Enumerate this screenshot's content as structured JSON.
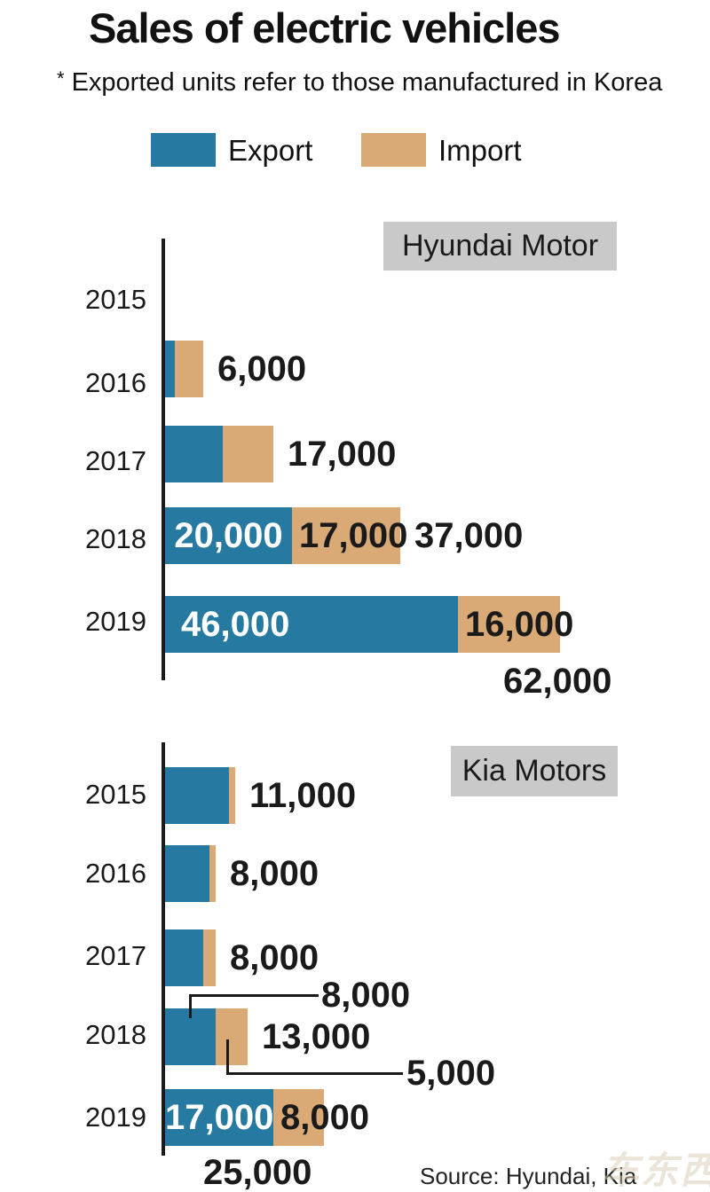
{
  "title": "Sales of electric vehicles",
  "note": {
    "marker": "*",
    "text": "Exported units refer to those manufactured in Korea"
  },
  "legend": [
    {
      "label": "Export",
      "color": "#2679a1"
    },
    {
      "label": "Import",
      "color": "#d9a976"
    }
  ],
  "colors": {
    "export": "#2679a1",
    "import": "#d9a976",
    "header_bg": "#c9c9c9",
    "axis": "#1a1a1a"
  },
  "source": "Source: Hyundai, Kia",
  "watermark": "车东西",
  "chart_data": [
    {
      "type": "bar",
      "orientation": "horizontal",
      "stacked": true,
      "title": "Hyundai Motor",
      "unit": "vehicles",
      "categories": [
        "2015",
        "2016",
        "2017",
        "2018",
        "2019"
      ],
      "series": [
        {
          "name": "Export",
          "values": [
            0,
            1500,
            9000,
            20000,
            46000
          ]
        },
        {
          "name": "Import",
          "values": [
            0,
            4500,
            8000,
            17000,
            16000
          ]
        }
      ],
      "totals": [
        0,
        6000,
        17000,
        37000,
        62000
      ],
      "xlim": [
        0,
        65000
      ],
      "grid": false,
      "legend_position": "top",
      "value_labels": [
        {},
        {
          "total": "6,000",
          "total_placement": "right"
        },
        {
          "total": "17,000",
          "total_placement": "right"
        },
        {
          "export": "20,000",
          "export_placement": "inside-center",
          "import": "17,000",
          "import_placement": "inside",
          "total": "37,000",
          "total_placement": "right"
        },
        {
          "export": "46,000",
          "export_placement": "inside-left",
          "import": "16,000",
          "import_placement": "inside",
          "total": "62,000",
          "total_placement": "below-right"
        }
      ]
    },
    {
      "type": "bar",
      "orientation": "horizontal",
      "stacked": true,
      "title": "Kia Motors",
      "unit": "vehicles",
      "categories": [
        "2015",
        "2016",
        "2017",
        "2018",
        "2019"
      ],
      "series": [
        {
          "name": "Export",
          "values": [
            10000,
            7000,
            6000,
            8000,
            17000
          ]
        },
        {
          "name": "Import",
          "values": [
            1000,
            1000,
            2000,
            5000,
            8000
          ]
        }
      ],
      "totals": [
        11000,
        8000,
        8000,
        13000,
        25000
      ],
      "xlim": [
        0,
        30000
      ],
      "grid": false,
      "legend_position": "top",
      "value_labels": [
        {
          "total": "11,000",
          "total_placement": "right"
        },
        {
          "total": "8,000",
          "total_placement": "right"
        },
        {
          "total": "8,000",
          "total_placement": "right"
        },
        {
          "export": "8,000",
          "export_placement": "callout-up",
          "import": "5,000",
          "import_placement": "callout-down",
          "total": "13,000",
          "total_placement": "right"
        },
        {
          "export": "17,000",
          "export_placement": "inside-center",
          "import": "8,000",
          "import_placement": "inside",
          "total": "25,000",
          "total_placement": "below-left"
        }
      ]
    }
  ]
}
